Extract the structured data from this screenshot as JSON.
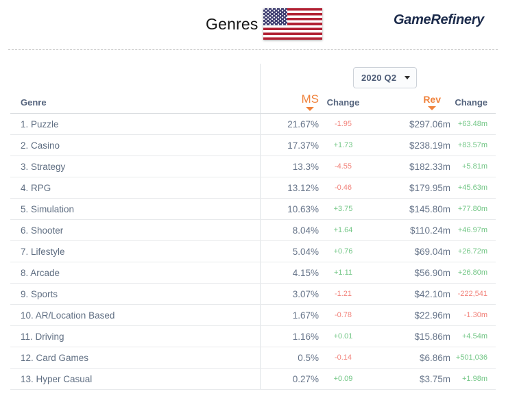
{
  "header": {
    "title": "Genres",
    "flag": "us-flag",
    "logo_text": "GameRefinery"
  },
  "controls": {
    "quarter_dropdown": {
      "value": "2020 Q2"
    }
  },
  "table": {
    "columns": {
      "genre": "Genre",
      "ms": "MS",
      "ms_change": "Change",
      "rev": "Rev",
      "rev_change": "Change"
    },
    "sorted_columns": [
      "MS",
      "Rev"
    ],
    "rows": [
      {
        "genre": "1. Puzzle",
        "ms": "21.67%",
        "ms_change": "-1.95",
        "rev": "$297.06m",
        "rev_change": "+63.48m"
      },
      {
        "genre": "2. Casino",
        "ms": "17.37%",
        "ms_change": "+1.73",
        "rev": "$238.19m",
        "rev_change": "+83.57m"
      },
      {
        "genre": "3. Strategy",
        "ms": "13.3%",
        "ms_change": "-4.55",
        "rev": "$182.33m",
        "rev_change": "+5.81m"
      },
      {
        "genre": "4. RPG",
        "ms": "13.12%",
        "ms_change": "-0.46",
        "rev": "$179.95m",
        "rev_change": "+45.63m"
      },
      {
        "genre": "5. Simulation",
        "ms": "10.63%",
        "ms_change": "+3.75",
        "rev": "$145.80m",
        "rev_change": "+77.80m"
      },
      {
        "genre": "6. Shooter",
        "ms": "8.04%",
        "ms_change": "+1.64",
        "rev": "$110.24m",
        "rev_change": "+46.97m"
      },
      {
        "genre": "7. Lifestyle",
        "ms": "5.04%",
        "ms_change": "+0.76",
        "rev": "$69.04m",
        "rev_change": "+26.72m"
      },
      {
        "genre": "8. Arcade",
        "ms": "4.15%",
        "ms_change": "+1.11",
        "rev": "$56.90m",
        "rev_change": "+26.80m"
      },
      {
        "genre": "9. Sports",
        "ms": "3.07%",
        "ms_change": "-1.21",
        "rev": "$42.10m",
        "rev_change": "-222,541"
      },
      {
        "genre": "10. AR/Location Based",
        "ms": "1.67%",
        "ms_change": "-0.78",
        "rev": "$22.96m",
        "rev_change": "-1.30m"
      },
      {
        "genre": "11. Driving",
        "ms": "1.16%",
        "ms_change": "+0.01",
        "rev": "$15.86m",
        "rev_change": "+4.54m"
      },
      {
        "genre": "12. Card Games",
        "ms": "0.5%",
        "ms_change": "-0.14",
        "rev": "$6.86m",
        "rev_change": "+501,036"
      },
      {
        "genre": "13. Hyper Casual",
        "ms": "0.27%",
        "ms_change": "+0.09",
        "rev": "$3.75m",
        "rev_change": "+1.98m"
      }
    ]
  },
  "colors": {
    "accent_orange": "#f0833d",
    "positive_green": "#74c787",
    "negative_red": "#f2837b",
    "slate_text": "#5f6e82",
    "logo_navy": "#1c2b4b",
    "flag_red": "#b22234",
    "flag_blue": "#3c3b6e"
  }
}
